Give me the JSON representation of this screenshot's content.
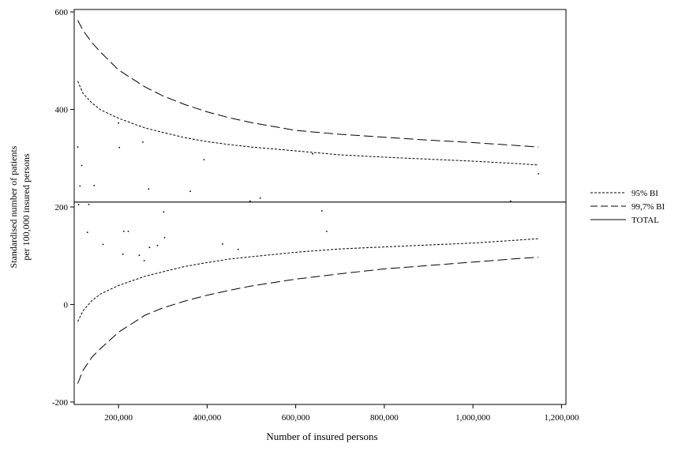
{
  "chart_data": {
    "type": "scatter",
    "title": "",
    "xlabel": "Number of insured persons",
    "ylabel_lines": [
      "Standardised number of patients",
      "per 100,000 insured persons"
    ],
    "xlim": [
      100000,
      1210000
    ],
    "ylim": [
      -205,
      605
    ],
    "x_ticks": [
      200000,
      400000,
      600000,
      800000,
      1000000,
      1200000
    ],
    "x_tick_labels": [
      "200,000",
      "400,000",
      "600,000",
      "800,000",
      "1,000,000",
      "1,200,000"
    ],
    "y_ticks": [
      -200,
      0,
      200,
      400,
      600
    ],
    "y_tick_labels": [
      "-200",
      "0",
      "200",
      "400",
      "600"
    ],
    "grid": false,
    "legend_position": "right",
    "series": [
      {
        "name": "95% BI",
        "style": "dotted",
        "line": "band",
        "x": [
          108000,
          120000,
          140000,
          160000,
          200000,
          260000,
          300000,
          350000,
          400000,
          450000,
          500000,
          600000,
          700000,
          800000,
          900000,
          1000000,
          1100000,
          1148000
        ],
        "y_upper": [
          458,
          433,
          413,
          399,
          382,
          362,
          353,
          342,
          334,
          328,
          323,
          315,
          307,
          302,
          298,
          294,
          289,
          286
        ],
        "y_lower": [
          -35,
          -13,
          8,
          22,
          39,
          58,
          67,
          78,
          86,
          93,
          98,
          107,
          114,
          118,
          122,
          126,
          132,
          135
        ]
      },
      {
        "name": "99,7% BI",
        "style": "dashed",
        "line": "band",
        "x": [
          108000,
          120000,
          140000,
          160000,
          200000,
          260000,
          300000,
          350000,
          400000,
          450000,
          500000,
          600000,
          700000,
          800000,
          900000,
          1000000,
          1100000,
          1148000
        ],
        "y_upper": [
          583,
          562,
          537,
          517,
          481,
          446,
          428,
          410,
          395,
          383,
          373,
          357,
          349,
          343,
          337,
          332,
          326,
          323
        ],
        "y_lower": [
          -162,
          -135,
          -108,
          -90,
          -57,
          -22,
          -7,
          7,
          19,
          29,
          38,
          52,
          63,
          73,
          80,
          87,
          94,
          97
        ]
      },
      {
        "name": "TOTAL",
        "style": "solid",
        "line": "horizontal",
        "y": 210
      }
    ],
    "points": {
      "x": [
        108000,
        110000,
        113000,
        117000,
        130000,
        133000,
        145000,
        165000,
        200000,
        202000,
        210000,
        212000,
        222000,
        247000,
        255000,
        258000,
        268000,
        270000,
        288000,
        302000,
        304000,
        362000,
        393000,
        435000,
        470000,
        497000,
        520000,
        638000,
        659000,
        670000,
        1085000,
        1148000
      ],
      "y": [
        323,
        205,
        243,
        285,
        148,
        205,
        244,
        123,
        372,
        322,
        103,
        150,
        150,
        101,
        333,
        90,
        237,
        117,
        121,
        190,
        137,
        232,
        297,
        124,
        113,
        212,
        218,
        309,
        192,
        150,
        212,
        268
      ]
    }
  }
}
